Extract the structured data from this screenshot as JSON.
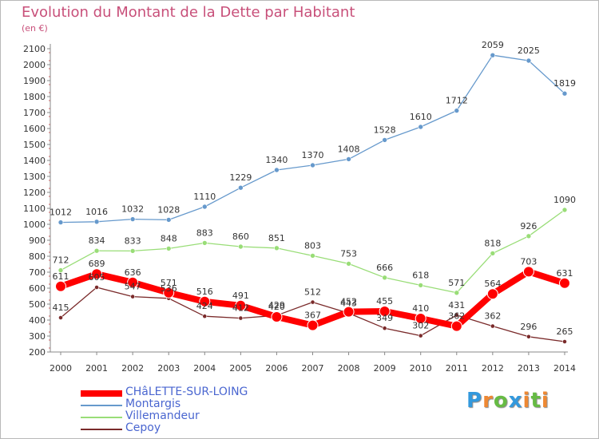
{
  "chart_data": {
    "type": "line",
    "title": "Evolution du Montant de la Dette par Habitant",
    "subtitle": "(en €)",
    "x": [
      "2000",
      "2001",
      "2002",
      "2003",
      "2004",
      "2005",
      "2006",
      "2007",
      "2008",
      "2009",
      "2010",
      "2011",
      "2012",
      "2013",
      "2014"
    ],
    "ylim": [
      200,
      2100
    ],
    "yticks": [
      200,
      300,
      400,
      500,
      600,
      700,
      800,
      900,
      1000,
      1100,
      1200,
      1300,
      1400,
      1500,
      1600,
      1700,
      1800,
      1900,
      2000,
      2100
    ],
    "grid": false,
    "legend_position": "bottom-left",
    "series": [
      {
        "name": "Cepoy",
        "color": "#7a2a2a",
        "width": 1.3,
        "marker": 2.6,
        "values": [
          415,
          605,
          547,
          536,
          424,
          412,
          429,
          512,
          443,
          349,
          302,
          431,
          362,
          296,
          265
        ],
        "labels": [
          "415",
          "605",
          "547",
          "536",
          "424",
          "412",
          "429",
          "512",
          "443",
          "349",
          "302",
          "431",
          "362",
          "296",
          "265"
        ]
      },
      {
        "name": "Villemandeur",
        "color": "#99dd77",
        "width": 1.3,
        "marker": 3,
        "values": [
          712,
          834,
          833,
          848,
          883,
          860,
          851,
          803,
          753,
          666,
          618,
          571,
          818,
          926,
          1090
        ],
        "labels": [
          "712",
          "834",
          "833",
          "848",
          "883",
          "860",
          "851",
          "803",
          "753",
          "666",
          "618",
          "571",
          "818",
          "926",
          "1090"
        ]
      },
      {
        "name": "Montargis",
        "color": "#6699cc",
        "width": 1.3,
        "marker": 3,
        "values": [
          1012,
          1016,
          1032,
          1028,
          1110,
          1229,
          1340,
          1370,
          1408,
          1528,
          1610,
          1712,
          2059,
          2025,
          1819
        ],
        "labels": [
          "1012",
          "1016",
          "1032",
          "1028",
          "1110",
          "1229",
          "1340",
          "1370",
          "1408",
          "1528",
          "1610",
          "1712",
          "2059",
          "2025",
          "1819"
        ]
      },
      {
        "name": "CHâLETTE-SUR-LOING",
        "color": "#ff0000",
        "width": 8,
        "marker": 6.5,
        "values": [
          611,
          689,
          636,
          571,
          516,
          491,
          420,
          367,
          452,
          455,
          410,
          362,
          564,
          703,
          631
        ],
        "labels": [
          "611",
          "689",
          "636",
          "571",
          "516",
          "491",
          "420",
          "367",
          "452",
          "455",
          "410",
          "362",
          "564",
          "703",
          "631"
        ]
      }
    ]
  },
  "legend": [
    {
      "name": "CHâLETTE-SUR-LOING",
      "color": "#ff0000",
      "thickness": 8
    },
    {
      "name": "Montargis",
      "color": "#6699cc",
      "thickness": 2
    },
    {
      "name": "Villemandeur",
      "color": "#99dd77",
      "thickness": 2
    },
    {
      "name": "Cepoy",
      "color": "#7a2a2a",
      "thickness": 2
    }
  ],
  "logo": {
    "letters": [
      "P",
      "r",
      "o",
      "x",
      "i",
      "t",
      "i"
    ],
    "colors": [
      "#3399dd",
      "#ee8833",
      "#66bb44",
      "#3399dd",
      "#ee8833",
      "#66bb44",
      "#ee8833"
    ]
  }
}
